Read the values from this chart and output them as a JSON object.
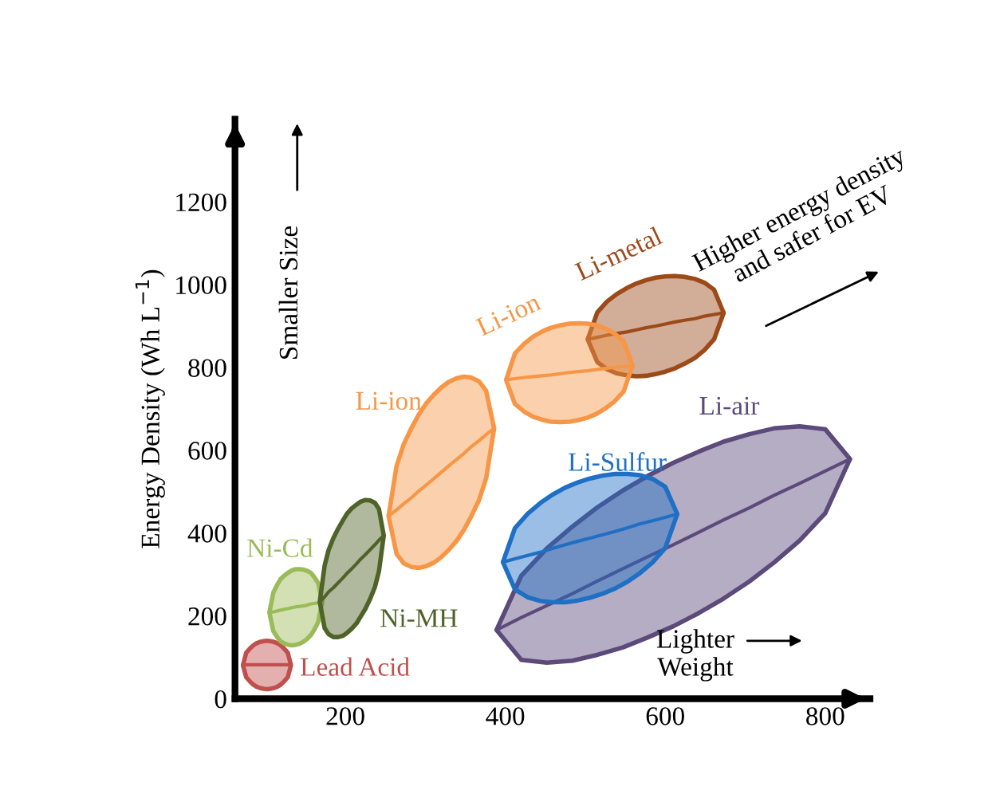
{
  "chart_data": {
    "type": "line",
    "ylabel": "Energy Density (Wh L$^{−1}$)",
    "xlim": [
      62,
      856
    ],
    "ylim": [
      0,
      1400
    ],
    "xticks": [
      200,
      400,
      600,
      800
    ],
    "yticks": [
      0,
      200,
      400,
      600,
      800,
      1000,
      1200
    ],
    "grid": false,
    "series": [
      {
        "name": "Lead Acid",
        "color": "#c0504d",
        "x": [
          72,
          76,
          81,
          85,
          89,
          93,
          98,
          102,
          106,
          111,
          115,
          119,
          123,
          128,
          132
        ],
        "lower": [
          81,
          52,
          41,
          34,
          29,
          26,
          24,
          23,
          24,
          26,
          29,
          34,
          41,
          52,
          81
        ],
        "upper": [
          81,
          111,
          122,
          129,
          134,
          137,
          139,
          140,
          139,
          137,
          134,
          129,
          122,
          111,
          81
        ],
        "values": [
          81,
          82,
          82,
          82,
          82,
          82,
          82,
          82,
          82,
          82,
          82,
          82,
          82,
          82,
          81
        ]
      },
      {
        "name": "Ni-Cd",
        "color": "#9bbb59",
        "x": [
          105,
          110,
          115,
          119,
          124,
          129,
          133,
          138,
          143,
          147,
          152,
          157,
          161,
          166,
          171
        ],
        "lower": [
          208,
          163,
          148,
          139,
          133,
          130,
          129,
          130,
          133,
          137,
          144,
          154,
          166,
          185,
          234
        ],
        "upper": [
          208,
          257,
          276,
          289,
          298,
          305,
          310,
          313,
          313,
          312,
          309,
          304,
          294,
          279,
          234
        ],
        "values": [
          208,
          210,
          212,
          214,
          216,
          218,
          220,
          222,
          223,
          224,
          226,
          229,
          230,
          232,
          234
        ]
      },
      {
        "name": "Ni-MH",
        "color": "#4f6228",
        "x": [
          168,
          174,
          179,
          185,
          191,
          197,
          202,
          208,
          214,
          219,
          225,
          231,
          237,
          242,
          248
        ],
        "lower": [
          234,
          171,
          156,
          149,
          149,
          152,
          159,
          169,
          182,
          198,
          217,
          241,
          270,
          308,
          394
        ],
        "upper": [
          234,
          321,
          359,
          388,
          411,
          431,
          447,
          460,
          469,
          476,
          480,
          479,
          473,
          458,
          394
        ],
        "values": [
          234,
          246,
          258,
          268,
          280,
          292,
          303,
          314,
          326,
          337,
          348,
          360,
          372,
          383,
          394
        ]
      },
      {
        "name": "Li-ion",
        "color": "#f79646",
        "x": [
          254,
          264,
          273,
          283,
          292,
          301,
          311,
          320,
          329,
          339,
          348,
          357,
          367,
          376,
          386
        ],
        "lower": [
          441,
          350,
          327,
          318,
          316,
          320,
          329,
          342,
          359,
          381,
          407,
          439,
          479,
          532,
          653
        ],
        "upper": [
          441,
          562,
          615,
          655,
          687,
          713,
          735,
          752,
          765,
          774,
          778,
          776,
          767,
          744,
          653
        ],
        "values": [
          441,
          456,
          471,
          486,
          502,
          516,
          532,
          547,
          562,
          578,
          592,
          608,
          623,
          638,
          653
        ]
      },
      {
        "name": "Li-metal",
        "color": "#9c4a1a",
        "x": [
          503,
          515,
          527,
          539,
          552,
          564,
          576,
          588,
          600,
          612,
          624,
          637,
          649,
          661,
          673
        ],
        "lower": [
          868,
          813,
          796,
          786,
          781,
          779,
          780,
          784,
          790,
          798,
          809,
          823,
          842,
          868,
          932
        ],
        "upper": [
          868,
          933,
          959,
          977,
          992,
          1003,
          1011,
          1017,
          1020,
          1021,
          1019,
          1014,
          1005,
          988,
          932
        ],
        "values": [
          868,
          873,
          878,
          882,
          886,
          891,
          896,
          900,
          905,
          910,
          914,
          918,
          924,
          928,
          932
        ]
      },
      {
        "name": "Li-ion",
        "color": "#f79646",
        "x": [
          401,
          412,
          424,
          435,
          446,
          457,
          469,
          480,
          491,
          503,
          514,
          525,
          536,
          548,
          559
        ],
        "lower": [
          770,
          712,
          693,
          681,
          674,
          669,
          668,
          669,
          673,
          679,
          688,
          701,
          717,
          742,
          805
        ],
        "upper": [
          770,
          834,
          858,
          875,
          887,
          896,
          902,
          906,
          907,
          906,
          902,
          894,
          883,
          863,
          805
        ],
        "values": [
          770,
          773,
          776,
          778,
          780,
          782,
          785,
          788,
          790,
          792,
          795,
          798,
          800,
          802,
          805
        ]
      },
      {
        "name": "Li-air",
        "color": "#5b4a7a",
        "x": [
          389,
          420,
          452,
          484,
          515,
          547,
          578,
          610,
          642,
          673,
          705,
          736,
          768,
          800,
          831
        ],
        "lower": [
          166,
          94,
          87,
          92,
          106,
          124,
          148,
          175,
          207,
          242,
          283,
          329,
          382,
          448,
          579
        ],
        "upper": [
          166,
          297,
          363,
          416,
          462,
          503,
          538,
          570,
          597,
          621,
          639,
          653,
          658,
          651,
          579
        ],
        "values": [
          166,
          196,
          225,
          254,
          284,
          314,
          343,
          372,
          402,
          432,
          461,
          491,
          520,
          550,
          579
        ]
      },
      {
        "name": "Li-Sulfur",
        "color": "#1f6fc5",
        "x": [
          397,
          412,
          428,
          444,
          459,
          475,
          490,
          506,
          522,
          537,
          553,
          568,
          584,
          600,
          615
        ],
        "lower": [
          330,
          264,
          245,
          236,
          233,
          233,
          237,
          244,
          254,
          266,
          283,
          303,
          329,
          364,
          446
        ],
        "upper": [
          330,
          412,
          447,
          473,
          493,
          510,
          522,
          532,
          539,
          543,
          543,
          540,
          531,
          512,
          446
        ],
        "values": [
          330,
          338,
          346,
          354,
          363,
          372,
          380,
          388,
          396,
          404,
          413,
          422,
          430,
          438,
          446
        ]
      }
    ],
    "annotations": [
      "Smaller Size",
      "Lighter\nWeight",
      "Higher energy density\nand safer for EV"
    ]
  }
}
